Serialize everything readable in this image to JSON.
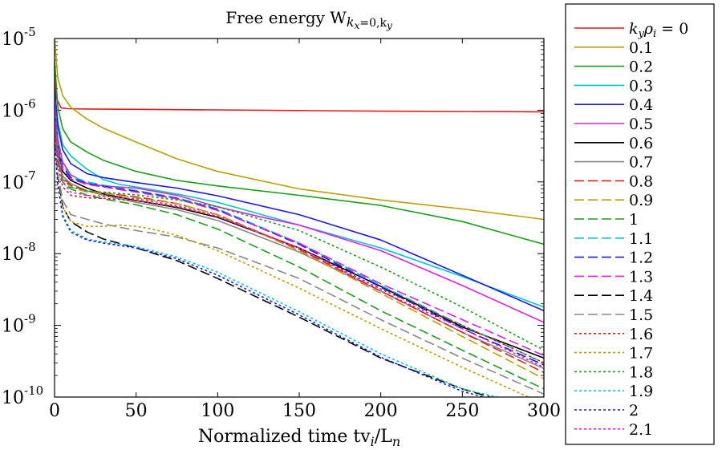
{
  "chart_data": {
    "type": "line",
    "title": "Free energy W",
    "title_sub": "k",
    "title_subsub_x": "x",
    "title_sub_eq": "=0,k",
    "title_subsub_y": "y",
    "xlabel": "Normalized time tv",
    "xlabel_sub_i": "i",
    "xlabel_mid": "/L",
    "xlabel_sub_n": "n",
    "xlim": [
      0,
      300
    ],
    "ylim": [
      1e-10,
      1e-05
    ],
    "yscale": "log",
    "x_ticks": [
      "0",
      "50",
      "100",
      "150",
      "200",
      "250",
      "300"
    ],
    "y_ticks": [
      {
        "base": "10",
        "exp": "-10"
      },
      {
        "base": "10",
        "exp": "-9"
      },
      {
        "base": "10",
        "exp": "-8"
      },
      {
        "base": "10",
        "exp": "-7"
      },
      {
        "base": "10",
        "exp": "-6"
      },
      {
        "base": "10",
        "exp": "-5"
      }
    ],
    "legend": {
      "placement": "right",
      "first_label": {
        "k": "k",
        "k_sub": "y",
        "rho": "ρ",
        "rho_sub": "i",
        "tail": " = 0"
      }
    },
    "series": [
      {
        "name": "0",
        "label": "k_y ρ_i = 0",
        "color": "#e41a1c",
        "dash": "solid",
        "x": [
          0,
          1,
          4,
          8,
          20,
          50,
          100,
          150,
          200,
          250,
          300
        ],
        "y": [
          3e-06,
          1.5e-06,
          1.08e-06,
          1.05e-06,
          1.04e-06,
          1.03e-06,
          1.01e-06,
          9.9e-07,
          9.7e-07,
          9.6e-07,
          9.5e-07
        ]
      },
      {
        "name": "0.1",
        "label": "0.1",
        "color": "#b8a000",
        "dash": "solid",
        "x": [
          0,
          2,
          5,
          10,
          20,
          30,
          50,
          75,
          100,
          150,
          200,
          250,
          300
        ],
        "y": [
          1e-05,
          2.8e-06,
          1.6e-06,
          1.1e-06,
          7.5e-07,
          5.6e-07,
          3.6e-07,
          2.1e-07,
          1.4e-07,
          8e-08,
          5.6e-08,
          4.2e-08,
          3e-08
        ]
      },
      {
        "name": "0.2",
        "label": "0.2",
        "color": "#1a9e1a",
        "dash": "solid",
        "x": [
          0,
          2,
          5,
          10,
          20,
          30,
          50,
          75,
          100,
          150,
          200,
          250,
          300
        ],
        "y": [
          5e-06,
          1.1e-06,
          5.5e-07,
          3.6e-07,
          2.6e-07,
          2e-07,
          1.4e-07,
          1.05e-07,
          8.8e-08,
          6.5e-08,
          4.7e-08,
          2.8e-08,
          1.35e-08
        ]
      },
      {
        "name": "0.3",
        "label": "0.3",
        "color": "#00c8c8",
        "dash": "solid",
        "x": [
          0,
          2,
          5,
          10,
          20,
          30,
          40,
          50,
          75,
          100,
          150,
          200,
          250,
          300
        ],
        "y": [
          2e-06,
          7e-07,
          3.3e-07,
          2.3e-07,
          1.5e-07,
          1.08e-07,
          9.2e-08,
          8.5e-08,
          6.8e-08,
          5.2e-08,
          2.5e-08,
          1.2e-08,
          4.8e-09,
          1.8e-09
        ]
      },
      {
        "name": "0.4",
        "label": "0.4",
        "color": "#1a1ae0",
        "dash": "solid",
        "x": [
          0,
          2,
          5,
          10,
          20,
          30,
          50,
          75,
          100,
          150,
          200,
          250,
          300
        ],
        "y": [
          2e-06,
          6e-07,
          2.8e-07,
          1.8e-07,
          1.3e-07,
          1.15e-07,
          9.8e-08,
          8.2e-08,
          6.4e-08,
          3.5e-08,
          1.55e-08,
          5e-09,
          1.6e-09
        ]
      },
      {
        "name": "0.5",
        "label": "0.5",
        "color": "#e020e0",
        "dash": "solid",
        "x": [
          0,
          2,
          5,
          10,
          20,
          30,
          50,
          75,
          100,
          125,
          150,
          200,
          250,
          300
        ],
        "y": [
          1.5e-06,
          4e-07,
          1.9e-07,
          1.25e-07,
          9.5e-08,
          8.8e-08,
          8.2e-08,
          6.5e-08,
          4.5e-08,
          3.3e-08,
          2.5e-08,
          1.1e-08,
          3.6e-09,
          1.1e-09
        ]
      },
      {
        "name": "0.6",
        "label": "0.6",
        "color": "#000000",
        "dash": "solid",
        "x": [
          0,
          2,
          5,
          10,
          20,
          30,
          50,
          75,
          100,
          150,
          200,
          250,
          300
        ],
        "y": [
          1e-06,
          2.8e-07,
          1.4e-07,
          1.05e-07,
          8.2e-08,
          6.8e-08,
          5.5e-08,
          4.4e-08,
          3.2e-08,
          1.2e-08,
          3.5e-09,
          9.5e-10,
          3.5e-10
        ]
      },
      {
        "name": "0.7",
        "label": "0.7",
        "color": "#888888",
        "dash": "solid",
        "x": [
          0,
          2,
          5,
          10,
          20,
          30,
          50,
          75,
          100,
          150,
          200,
          250,
          300
        ],
        "y": [
          9e-07,
          2.5e-07,
          1.2e-07,
          9.5e-08,
          7.5e-08,
          6.5e-08,
          5.2e-08,
          4.1e-08,
          2.9e-08,
          1.05e-08,
          3e-09,
          8e-10,
          2.5e-10
        ]
      },
      {
        "name": "0.8",
        "label": "0.8",
        "color": "#e41a1c",
        "dash": "dashed",
        "x": [
          0,
          2,
          5,
          10,
          20,
          30,
          50,
          75,
          100,
          150,
          200,
          250,
          300
        ],
        "y": [
          9e-07,
          2.4e-07,
          1.15e-07,
          9e-08,
          7.5e-08,
          7e-08,
          6.2e-08,
          5e-08,
          3.5e-08,
          1.15e-08,
          3e-09,
          8e-10,
          2.2e-10
        ]
      },
      {
        "name": "0.9",
        "label": "0.9",
        "color": "#b8a000",
        "dash": "dashed",
        "x": [
          0,
          2,
          5,
          10,
          20,
          30,
          50,
          75,
          100,
          150,
          200,
          250,
          300
        ],
        "y": [
          8e-07,
          2.2e-07,
          1.1e-07,
          8.5e-08,
          7.2e-08,
          6.9e-08,
          6e-08,
          5e-08,
          3.5e-08,
          1.1e-08,
          2.8e-09,
          7e-10,
          1.8e-10
        ]
      },
      {
        "name": "1",
        "label": "1",
        "color": "#1a9e1a",
        "dash": "dashed",
        "x": [
          0,
          2,
          5,
          10,
          20,
          30,
          50,
          75,
          100,
          150,
          200,
          250,
          300
        ],
        "y": [
          7e-07,
          2e-07,
          1e-07,
          8e-08,
          6.5e-08,
          5.8e-08,
          4.8e-08,
          3.5e-08,
          2.2e-08,
          6.5e-09,
          1.6e-09,
          4.5e-10,
          1.3e-10
        ]
      },
      {
        "name": "1.1",
        "label": "1.1",
        "color": "#00c8c8",
        "dash": "dashed",
        "x": [
          0,
          2,
          5,
          10,
          20,
          30,
          50,
          75,
          100,
          150,
          200,
          250,
          300
        ],
        "y": [
          1.3e-06,
          3.5e-07,
          1.7e-07,
          1.2e-07,
          1e-07,
          9e-08,
          7.6e-08,
          6e-08,
          4.2e-08,
          1.4e-08,
          3.6e-09,
          1e-09,
          3e-10
        ]
      },
      {
        "name": "1.2",
        "label": "1.2",
        "color": "#1a1ae0",
        "dash": "dashed",
        "x": [
          0,
          2,
          5,
          10,
          20,
          30,
          50,
          75,
          100,
          150,
          200,
          250,
          300
        ],
        "y": [
          1.2e-06,
          3.2e-07,
          1.6e-07,
          1.15e-07,
          9.5e-08,
          8.7e-08,
          7.4e-08,
          5.9e-08,
          4.1e-08,
          1.35e-08,
          3.4e-09,
          9e-10,
          2.8e-10
        ]
      },
      {
        "name": "1.3",
        "label": "1.3",
        "color": "#e020e0",
        "dash": "dashed",
        "x": [
          0,
          2,
          5,
          10,
          20,
          30,
          50,
          75,
          100,
          150,
          200,
          250,
          300
        ],
        "y": [
          1.1e-06,
          3e-07,
          1.5e-07,
          1.1e-07,
          9.2e-08,
          8.5e-08,
          7.2e-08,
          5.8e-08,
          4e-08,
          1.4e-08,
          3.8e-09,
          1.2e-09,
          3.8e-10
        ]
      },
      {
        "name": "1.4",
        "label": "1.4",
        "color": "#000000",
        "dash": "dashed",
        "x": [
          0,
          2,
          5,
          10,
          20,
          30,
          50,
          75,
          100,
          150,
          200,
          250,
          300
        ],
        "y": [
          5e-07,
          1.2e-07,
          4.5e-08,
          2.8e-08,
          2e-08,
          1.6e-08,
          1.2e-08,
          8e-09,
          4.5e-09,
          1.3e-09,
          3.5e-10,
          1.3e-10,
          6e-11
        ]
      },
      {
        "name": "1.5",
        "label": "1.5",
        "color": "#888888",
        "dash": "dashed",
        "x": [
          0,
          2,
          5,
          10,
          20,
          30,
          50,
          75,
          100,
          150,
          200,
          250,
          300
        ],
        "y": [
          5e-07,
          1.3e-07,
          5.5e-08,
          3.5e-08,
          3e-08,
          2.6e-08,
          2.1e-08,
          1.7e-08,
          1.2e-08,
          4.5e-09,
          1.2e-09,
          3.5e-10,
          1.1e-10
        ]
      },
      {
        "name": "1.6",
        "label": "1.6",
        "color": "#e41a1c",
        "dash": "dotted",
        "x": [
          0,
          2,
          5,
          10,
          20,
          30,
          50,
          75,
          100,
          150,
          200,
          250,
          300
        ],
        "y": [
          6e-07,
          1.7e-07,
          8.5e-08,
          6.5e-08,
          6e-08,
          5.9e-08,
          5.5e-08,
          4.5e-08,
          3.3e-08,
          1.2e-08,
          3.2e-09,
          1e-09,
          3e-10
        ]
      },
      {
        "name": "1.7",
        "label": "1.7",
        "color": "#b8a000",
        "dash": "dotted",
        "x": [
          0,
          2,
          5,
          10,
          20,
          30,
          40,
          50,
          60,
          75,
          100,
          150,
          200,
          250,
          300
        ],
        "y": [
          4e-07,
          1e-07,
          4.5e-08,
          2.8e-08,
          2.4e-08,
          2.4e-08,
          2.5e-08,
          2.4e-08,
          2.2e-08,
          1.8e-08,
          1.1e-08,
          3.3e-09,
          9e-10,
          2.6e-10,
          8e-11
        ]
      },
      {
        "name": "1.8",
        "label": "1.8",
        "color": "#1a9e1a",
        "dash": "dotted",
        "x": [
          0,
          2,
          5,
          10,
          20,
          30,
          50,
          75,
          100,
          150,
          200,
          250,
          300
        ],
        "y": [
          9e-07,
          2.4e-07,
          1.1e-07,
          8.5e-08,
          7.5e-08,
          7.2e-08,
          6.6e-08,
          5.6e-08,
          4.5e-08,
          2.1e-08,
          6.5e-09,
          1.8e-09,
          4.5e-10
        ]
      },
      {
        "name": "1.9",
        "label": "1.9",
        "color": "#00c8c8",
        "dash": "dotted",
        "x": [
          0,
          2,
          5,
          10,
          20,
          30,
          50,
          75,
          100,
          150,
          200,
          250,
          300
        ],
        "y": [
          4e-07,
          9e-08,
          3.5e-08,
          2.1e-08,
          1.6e-08,
          1.45e-08,
          1.25e-08,
          9e-09,
          5.5e-09,
          1.55e-09,
          4e-10,
          1.3e-10,
          7e-11
        ]
      },
      {
        "name": "2",
        "label": "2",
        "color": "#1a1ae0",
        "dash": "dotted",
        "x": [
          0,
          2,
          5,
          10,
          20,
          30,
          50,
          75,
          100,
          150,
          200,
          250,
          300
        ],
        "y": [
          4e-07,
          9e-08,
          3.3e-08,
          2e-08,
          1.55e-08,
          1.4e-08,
          1.2e-08,
          8.5e-09,
          5e-09,
          1.4e-09,
          3.6e-10,
          1.2e-10,
          6e-11
        ]
      },
      {
        "name": "2.1",
        "label": "2.1",
        "color": "#e020e0",
        "dash": "dotted",
        "x": [
          0,
          2,
          5,
          10,
          20,
          30,
          50,
          75,
          100,
          150,
          200,
          250,
          300
        ],
        "y": [
          8e-07,
          2.1e-07,
          1e-07,
          7.2e-08,
          6.5e-08,
          6.3e-08,
          5.8e-08,
          4.7e-08,
          3.3e-08,
          1.2e-08,
          3e-09,
          9e-10,
          2.6e-10
        ]
      }
    ]
  }
}
